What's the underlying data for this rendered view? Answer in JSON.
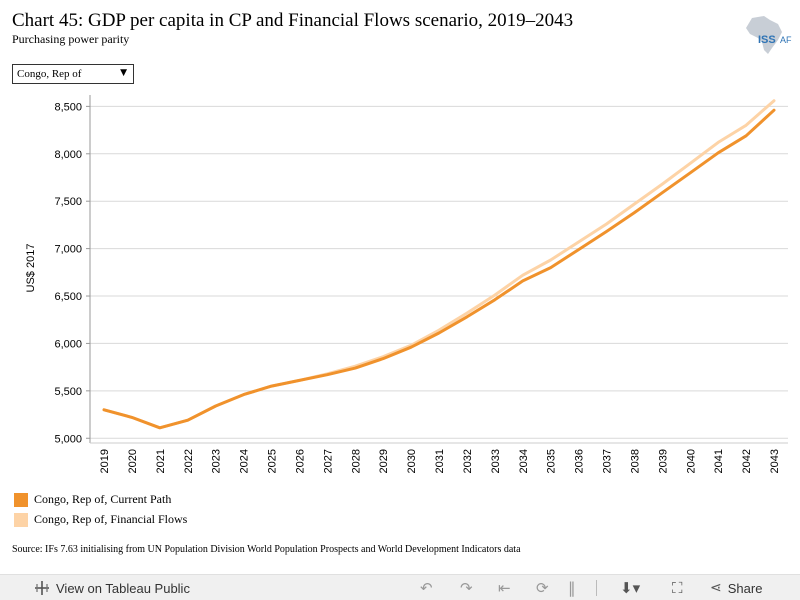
{
  "header": {
    "title": "Chart 45: GDP per capita in CP and Financial Flows scenario, 2019–2043",
    "subtitle": "Purchasing power parity",
    "logo_text": "ISS",
    "logo_text_2": "AF"
  },
  "filter": {
    "selected": "Congo, Rep of"
  },
  "chart_data": {
    "type": "line",
    "ylabel": "US$ 2017",
    "ylim": [
      4950,
      8620
    ],
    "yticks": [
      5000,
      5500,
      6000,
      6500,
      7000,
      7500,
      8000,
      8500
    ],
    "ytick_labels": [
      "5,000",
      "5,500",
      "6,000",
      "6,500",
      "7,000",
      "7,500",
      "8,000",
      "8,500"
    ],
    "x": [
      "2019",
      "2020",
      "2021",
      "2022",
      "2023",
      "2024",
      "2025",
      "2026",
      "2027",
      "2028",
      "2029",
      "2030",
      "2031",
      "2032",
      "2033",
      "2034",
      "2035",
      "2036",
      "2037",
      "2038",
      "2039",
      "2040",
      "2041",
      "2042",
      "2043"
    ],
    "series": [
      {
        "name": "Congo, Rep of, Current Path",
        "color": "#f0922c",
        "values": [
          5300,
          5220,
          5110,
          5190,
          5340,
          5460,
          5550,
          5610,
          5670,
          5740,
          5840,
          5960,
          6110,
          6280,
          6460,
          6660,
          6800,
          6990,
          7180,
          7380,
          7590,
          7800,
          8010,
          8190,
          8460
        ]
      },
      {
        "name": "Congo, Rep of, Financial Flows",
        "color": "#fdd3a6",
        "values": [
          5300,
          5220,
          5110,
          5190,
          5340,
          5460,
          5550,
          5610,
          5680,
          5760,
          5860,
          5980,
          6140,
          6320,
          6510,
          6720,
          6880,
          7070,
          7260,
          7470,
          7680,
          7900,
          8120,
          8300,
          8560
        ]
      }
    ],
    "legend_position": "bottom-left",
    "grid": true
  },
  "legend": {
    "items": [
      {
        "label": "Congo, Rep of, Current Path",
        "color": "#f0922c"
      },
      {
        "label": "Congo, Rep of, Financial Flows",
        "color": "#fdd3a6"
      }
    ]
  },
  "source": "Source: IFs 7.63 initialising from UN Population Division World Population Prospects and World Development Indicators data",
  "footer": {
    "view_label": "View on Tableau Public",
    "share_label": "Share"
  }
}
